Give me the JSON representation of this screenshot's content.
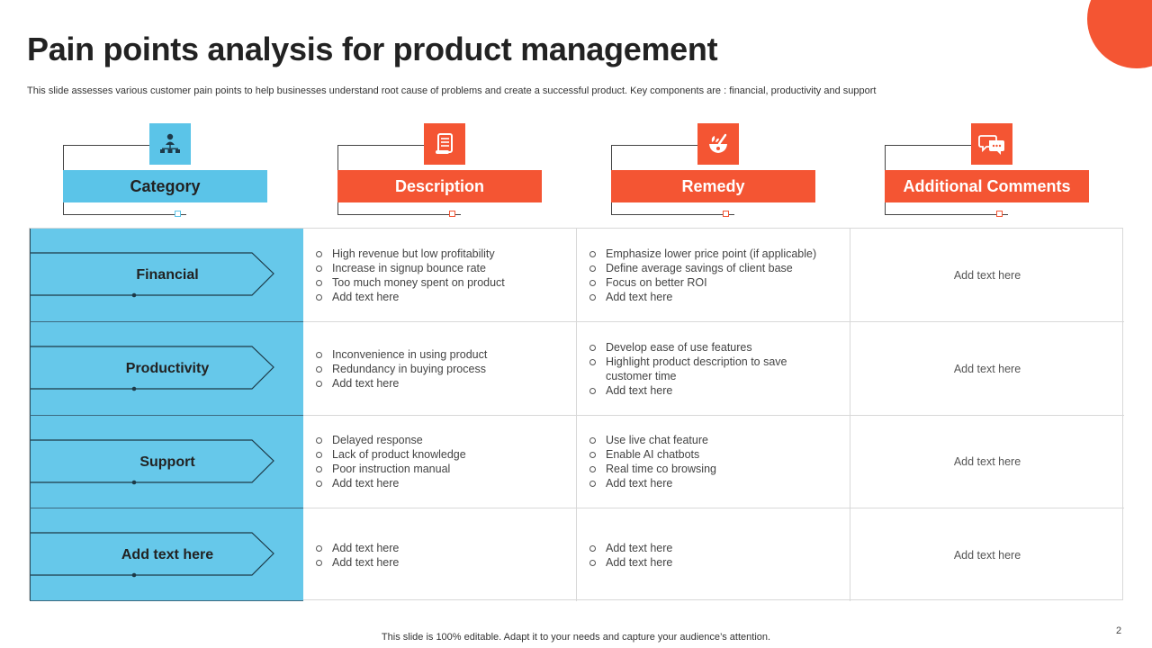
{
  "slide": {
    "title": "Pain points analysis for product management",
    "subtitle": "This slide assesses various customer pain points to help businesses understand root cause of problems and create a successful product. Key components are : financial, productivity and support",
    "footer": "This slide is 100% editable. Adapt it to your needs and capture your audience’s attention.",
    "page_number": "2"
  },
  "colors": {
    "accent_orange": "#f45533",
    "accent_blue": "#5bc4e8",
    "category_fill": "#66c8ea"
  },
  "headers": [
    {
      "label": "Category",
      "icon": "org-chart-icon"
    },
    {
      "label": "Description",
      "icon": "document-scroll-icon"
    },
    {
      "label": "Remedy",
      "icon": "mortar-pestle-icon"
    },
    {
      "label": "Additional Comments",
      "icon": "chat-bubbles-icon"
    }
  ],
  "rows": [
    {
      "category": "Financial",
      "description": [
        "High revenue but low profitability",
        "Increase in signup bounce rate",
        "Too much money spent on product",
        "Add text here"
      ],
      "remedy": [
        "Emphasize lower price point (if applicable)",
        "Define average savings of client base",
        "Focus on better ROI",
        "Add text here"
      ],
      "comment": "Add text here"
    },
    {
      "category": "Productivity",
      "description": [
        "Inconvenience in using product",
        "Redundancy in buying process",
        "Add text here"
      ],
      "remedy": [
        "Develop ease of use features",
        "Highlight product description to save customer time",
        "Add text here"
      ],
      "comment": "Add text here"
    },
    {
      "category": "Support",
      "description": [
        "Delayed response",
        "Lack of product knowledge",
        "Poor instruction manual",
        "Add text here"
      ],
      "remedy": [
        "Use live chat feature",
        "Enable AI chatbots",
        "Real time co browsing",
        "Add text here"
      ],
      "comment": "Add text here"
    },
    {
      "category": "Add text here",
      "description": [
        "Add text here",
        "Add text here"
      ],
      "remedy": [
        "Add text here",
        "Add text here"
      ],
      "comment": "Add text here"
    }
  ]
}
